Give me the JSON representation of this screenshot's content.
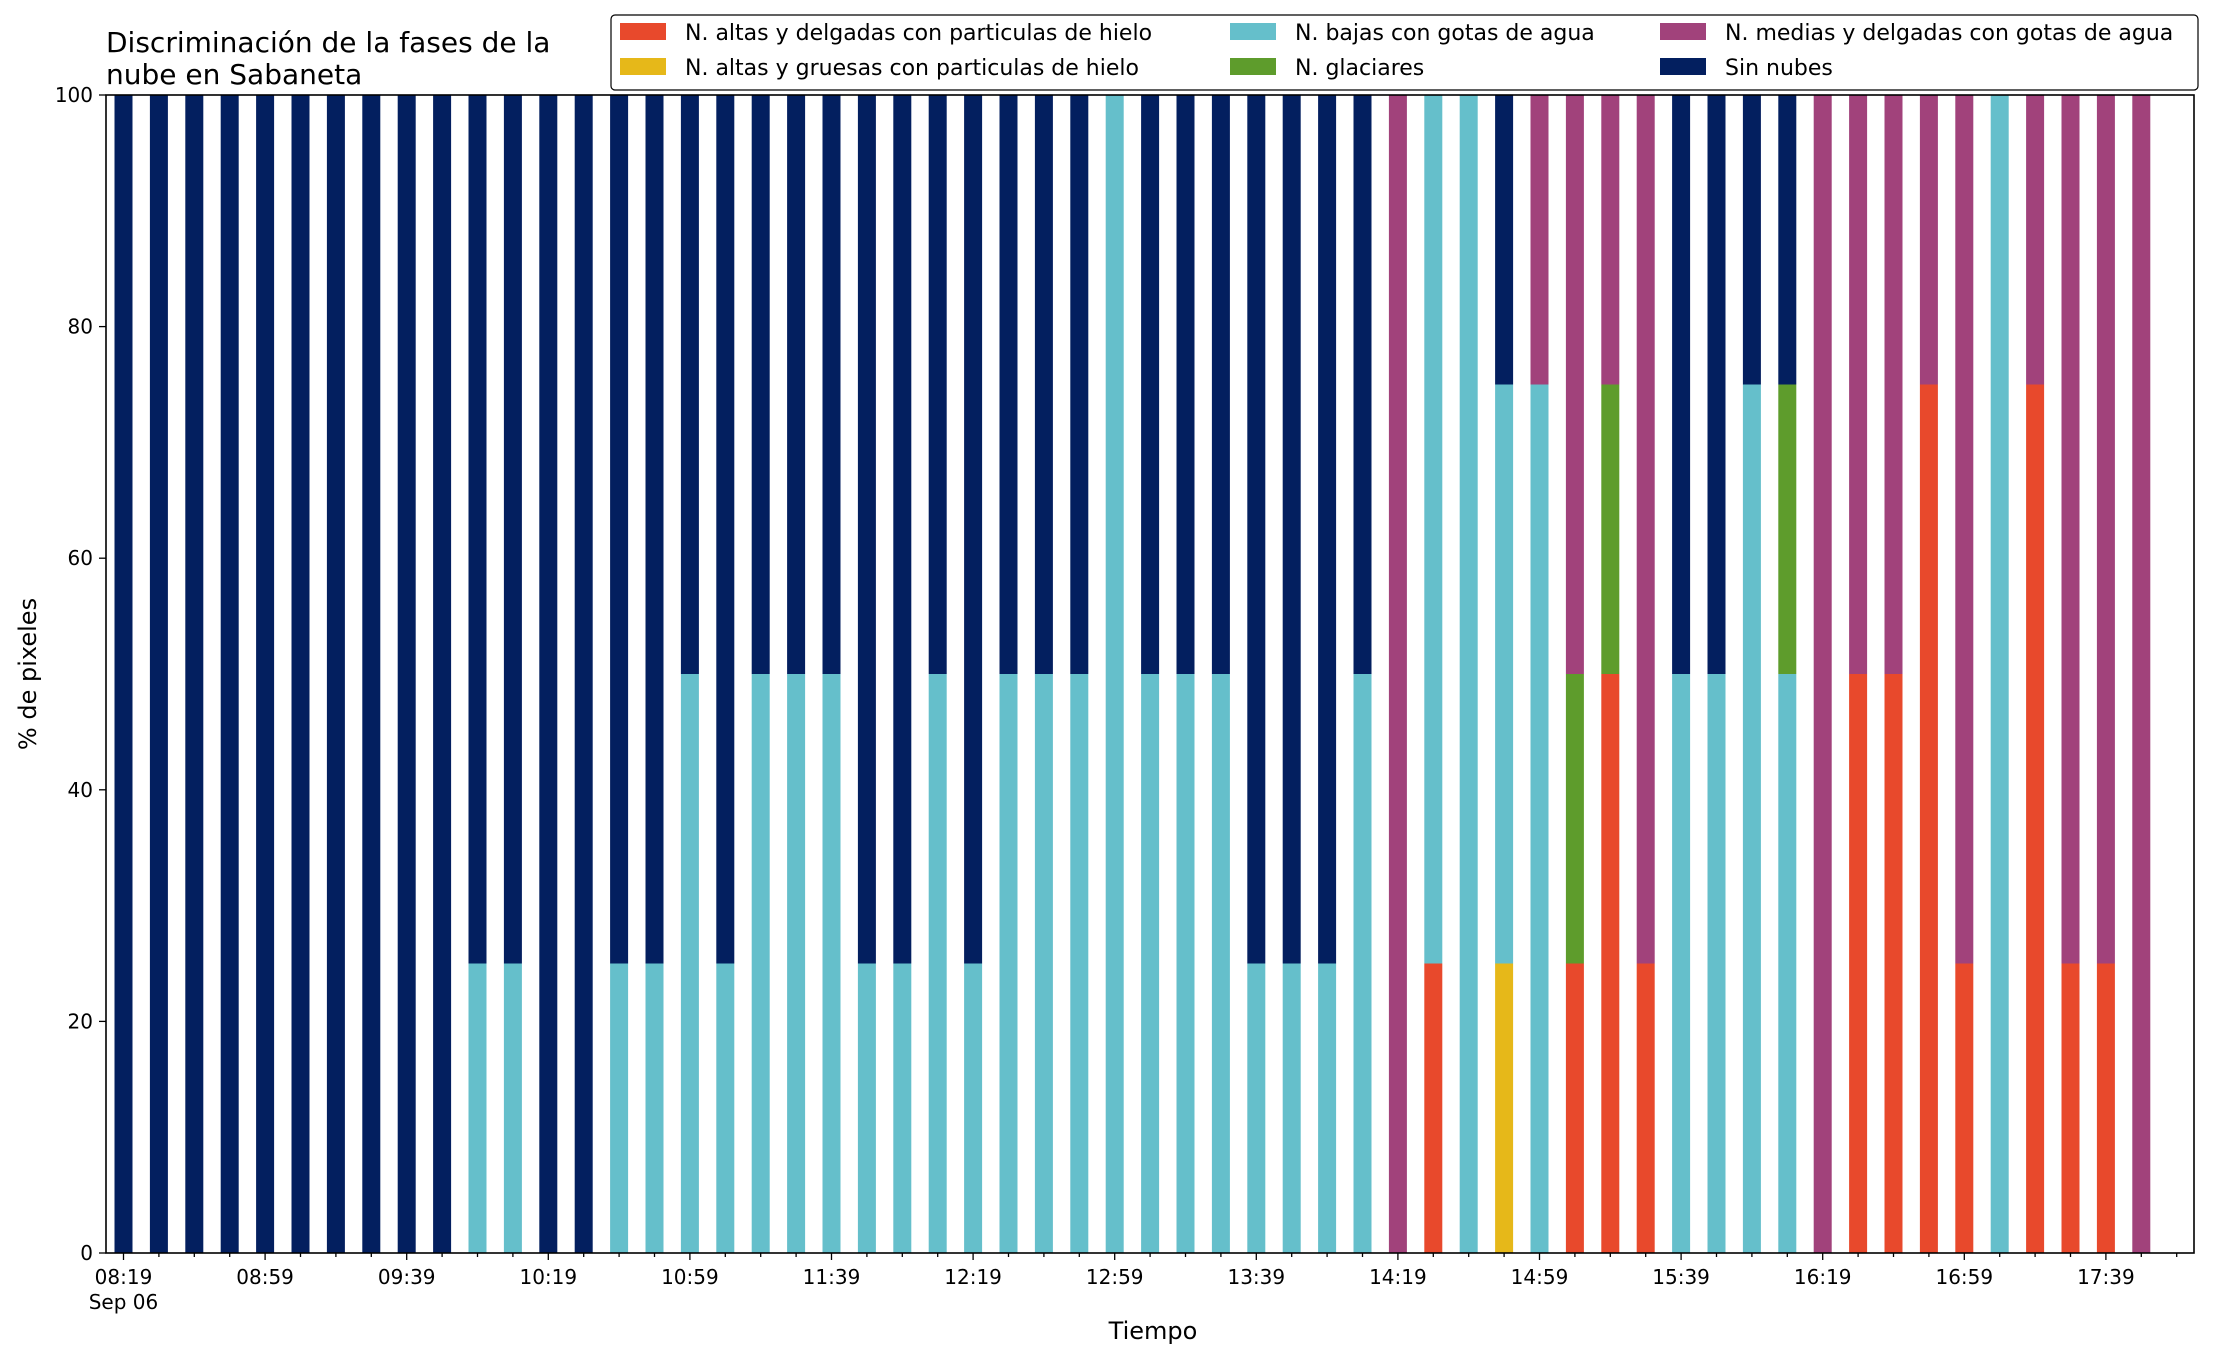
{
  "chart_data": {
    "type": "bar",
    "stacked": true,
    "title_lines": [
      "Discriminación de la fases de la",
      "nube en Sabaneta"
    ],
    "xlabel": "Tiempo",
    "ylabel": "% de pixeles",
    "ylim": [
      0,
      100
    ],
    "yticks": [
      "0",
      "20",
      "40",
      "60",
      "80",
      "100"
    ],
    "xtick_labels": [
      "08:19",
      "08:59",
      "09:39",
      "10:19",
      "10:59",
      "11:39",
      "12:19",
      "12:59",
      "13:39",
      "14:19",
      "14:59",
      "15:39",
      "16:19",
      "16:59",
      "17:39"
    ],
    "xtick_sublabel": "Sep 06",
    "grid": false,
    "legend_position": "top-right",
    "categories": [
      "08:19",
      "08:29",
      "08:39",
      "08:49",
      "08:59",
      "09:09",
      "09:19",
      "09:29",
      "09:39",
      "09:49",
      "09:59",
      "10:09",
      "10:19",
      "10:29",
      "10:39",
      "10:49",
      "10:59",
      "11:09",
      "11:19",
      "11:29",
      "11:39",
      "11:49",
      "11:59",
      "12:09",
      "12:19",
      "12:29",
      "12:39",
      "12:49",
      "12:59",
      "13:09",
      "13:19",
      "13:29",
      "13:39",
      "13:49",
      "13:59",
      "14:09",
      "14:19",
      "14:29",
      "14:39",
      "14:49",
      "14:59",
      "15:09",
      "15:19",
      "15:29",
      "15:39",
      "15:49",
      "15:59",
      "16:09",
      "16:19",
      "16:29",
      "16:39",
      "16:49",
      "16:59",
      "17:09",
      "17:19",
      "17:29",
      "17:39",
      "17:49"
    ],
    "series": [
      {
        "name": "N. altas y delgadas con particulas de hielo",
        "color": "#e8492c",
        "values": [
          0,
          0,
          0,
          0,
          0,
          0,
          0,
          0,
          0,
          0,
          0,
          0,
          0,
          0,
          0,
          0,
          0,
          0,
          0,
          0,
          0,
          0,
          0,
          0,
          0,
          0,
          0,
          0,
          0,
          0,
          0,
          0,
          0,
          0,
          0,
          0,
          0,
          25,
          0,
          0,
          0,
          25,
          50,
          25,
          0,
          0,
          0,
          0,
          0,
          50,
          50,
          75,
          25,
          0,
          75,
          25,
          25,
          0
        ]
      },
      {
        "name": "N. altas y gruesas con particulas de hielo",
        "color": "#e6b819",
        "values": [
          0,
          0,
          0,
          0,
          0,
          0,
          0,
          0,
          0,
          0,
          0,
          0,
          0,
          0,
          0,
          0,
          0,
          0,
          0,
          0,
          0,
          0,
          0,
          0,
          0,
          0,
          0,
          0,
          0,
          0,
          0,
          0,
          0,
          0,
          0,
          0,
          0,
          0,
          0,
          25,
          0,
          0,
          0,
          0,
          0,
          0,
          0,
          0,
          0,
          0,
          0,
          0,
          0,
          0,
          0,
          0,
          0,
          0
        ]
      },
      {
        "name": "N. bajas con gotas de agua",
        "color": "#65bfcb",
        "values": [
          0,
          0,
          0,
          0,
          0,
          0,
          0,
          0,
          0,
          0,
          25,
          25,
          0,
          0,
          25,
          25,
          50,
          25,
          50,
          50,
          50,
          25,
          25,
          50,
          25,
          50,
          50,
          50,
          100,
          50,
          50,
          50,
          25,
          25,
          25,
          50,
          0,
          75,
          100,
          50,
          75,
          0,
          0,
          0,
          50,
          50,
          75,
          50,
          0,
          0,
          0,
          0,
          0,
          100,
          0,
          0,
          0,
          0
        ]
      },
      {
        "name": "N. glaciares",
        "color": "#5e9c2c",
        "values": [
          0,
          0,
          0,
          0,
          0,
          0,
          0,
          0,
          0,
          0,
          0,
          0,
          0,
          0,
          0,
          0,
          0,
          0,
          0,
          0,
          0,
          0,
          0,
          0,
          0,
          0,
          0,
          0,
          0,
          0,
          0,
          0,
          0,
          0,
          0,
          0,
          0,
          0,
          0,
          0,
          0,
          25,
          25,
          0,
          0,
          0,
          0,
          25,
          0,
          0,
          0,
          0,
          0,
          0,
          0,
          0,
          0,
          0
        ]
      },
      {
        "name": "N. medias y delgadas con gotas de agua",
        "color": "#a1427b",
        "values": [
          0,
          0,
          0,
          0,
          0,
          0,
          0,
          0,
          0,
          0,
          0,
          0,
          0,
          0,
          0,
          0,
          0,
          0,
          0,
          0,
          0,
          0,
          0,
          0,
          0,
          0,
          0,
          0,
          0,
          0,
          0,
          0,
          0,
          0,
          0,
          0,
          100,
          0,
          0,
          0,
          25,
          50,
          25,
          75,
          0,
          0,
          0,
          0,
          100,
          50,
          50,
          25,
          75,
          0,
          25,
          75,
          75,
          100
        ]
      },
      {
        "name": "Sin nubes",
        "color": "#031f5f",
        "values": [
          100,
          100,
          100,
          100,
          100,
          100,
          100,
          100,
          100,
          100,
          75,
          75,
          100,
          100,
          75,
          75,
          50,
          75,
          50,
          50,
          50,
          75,
          75,
          50,
          75,
          50,
          50,
          50,
          0,
          50,
          50,
          50,
          75,
          75,
          75,
          50,
          0,
          0,
          0,
          25,
          0,
          0,
          0,
          0,
          50,
          50,
          25,
          25,
          0,
          0,
          0,
          0,
          0,
          0,
          0,
          0,
          0,
          0
        ]
      }
    ],
    "legend_order": [
      0,
      1,
      2,
      3,
      4,
      5
    ]
  }
}
